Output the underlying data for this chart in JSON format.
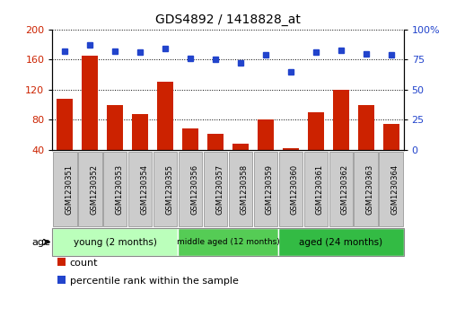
{
  "title": "GDS4892 / 1418828_at",
  "samples": [
    "GSM1230351",
    "GSM1230352",
    "GSM1230353",
    "GSM1230354",
    "GSM1230355",
    "GSM1230356",
    "GSM1230357",
    "GSM1230358",
    "GSM1230359",
    "GSM1230360",
    "GSM1230361",
    "GSM1230362",
    "GSM1230363",
    "GSM1230364"
  ],
  "counts": [
    108,
    165,
    100,
    88,
    130,
    68,
    62,
    48,
    80,
    42,
    90,
    120,
    100,
    75
  ],
  "percentiles": [
    82,
    87,
    82,
    81,
    84,
    76,
    75,
    72,
    79,
    65,
    81,
    83,
    80,
    79
  ],
  "ylim_left": [
    40,
    200
  ],
  "ylim_right": [
    0,
    100
  ],
  "yticks_left": [
    40,
    80,
    120,
    160,
    200
  ],
  "yticks_right": [
    0,
    25,
    50,
    75,
    100
  ],
  "bar_color": "#cc2200",
  "dot_color": "#2244cc",
  "group_colors": [
    "#bbffbb",
    "#55cc55",
    "#33bb44"
  ],
  "groups": [
    {
      "label": "young (2 months)",
      "start": 0,
      "end": 5
    },
    {
      "label": "middle aged (12 months)",
      "start": 5,
      "end": 9
    },
    {
      "label": "aged (24 months)",
      "start": 9,
      "end": 14
    }
  ],
  "legend_count_label": "count",
  "legend_pct_label": "percentile rank within the sample",
  "age_label": "age",
  "tick_bg": "#cccccc",
  "border_color": "#888888"
}
